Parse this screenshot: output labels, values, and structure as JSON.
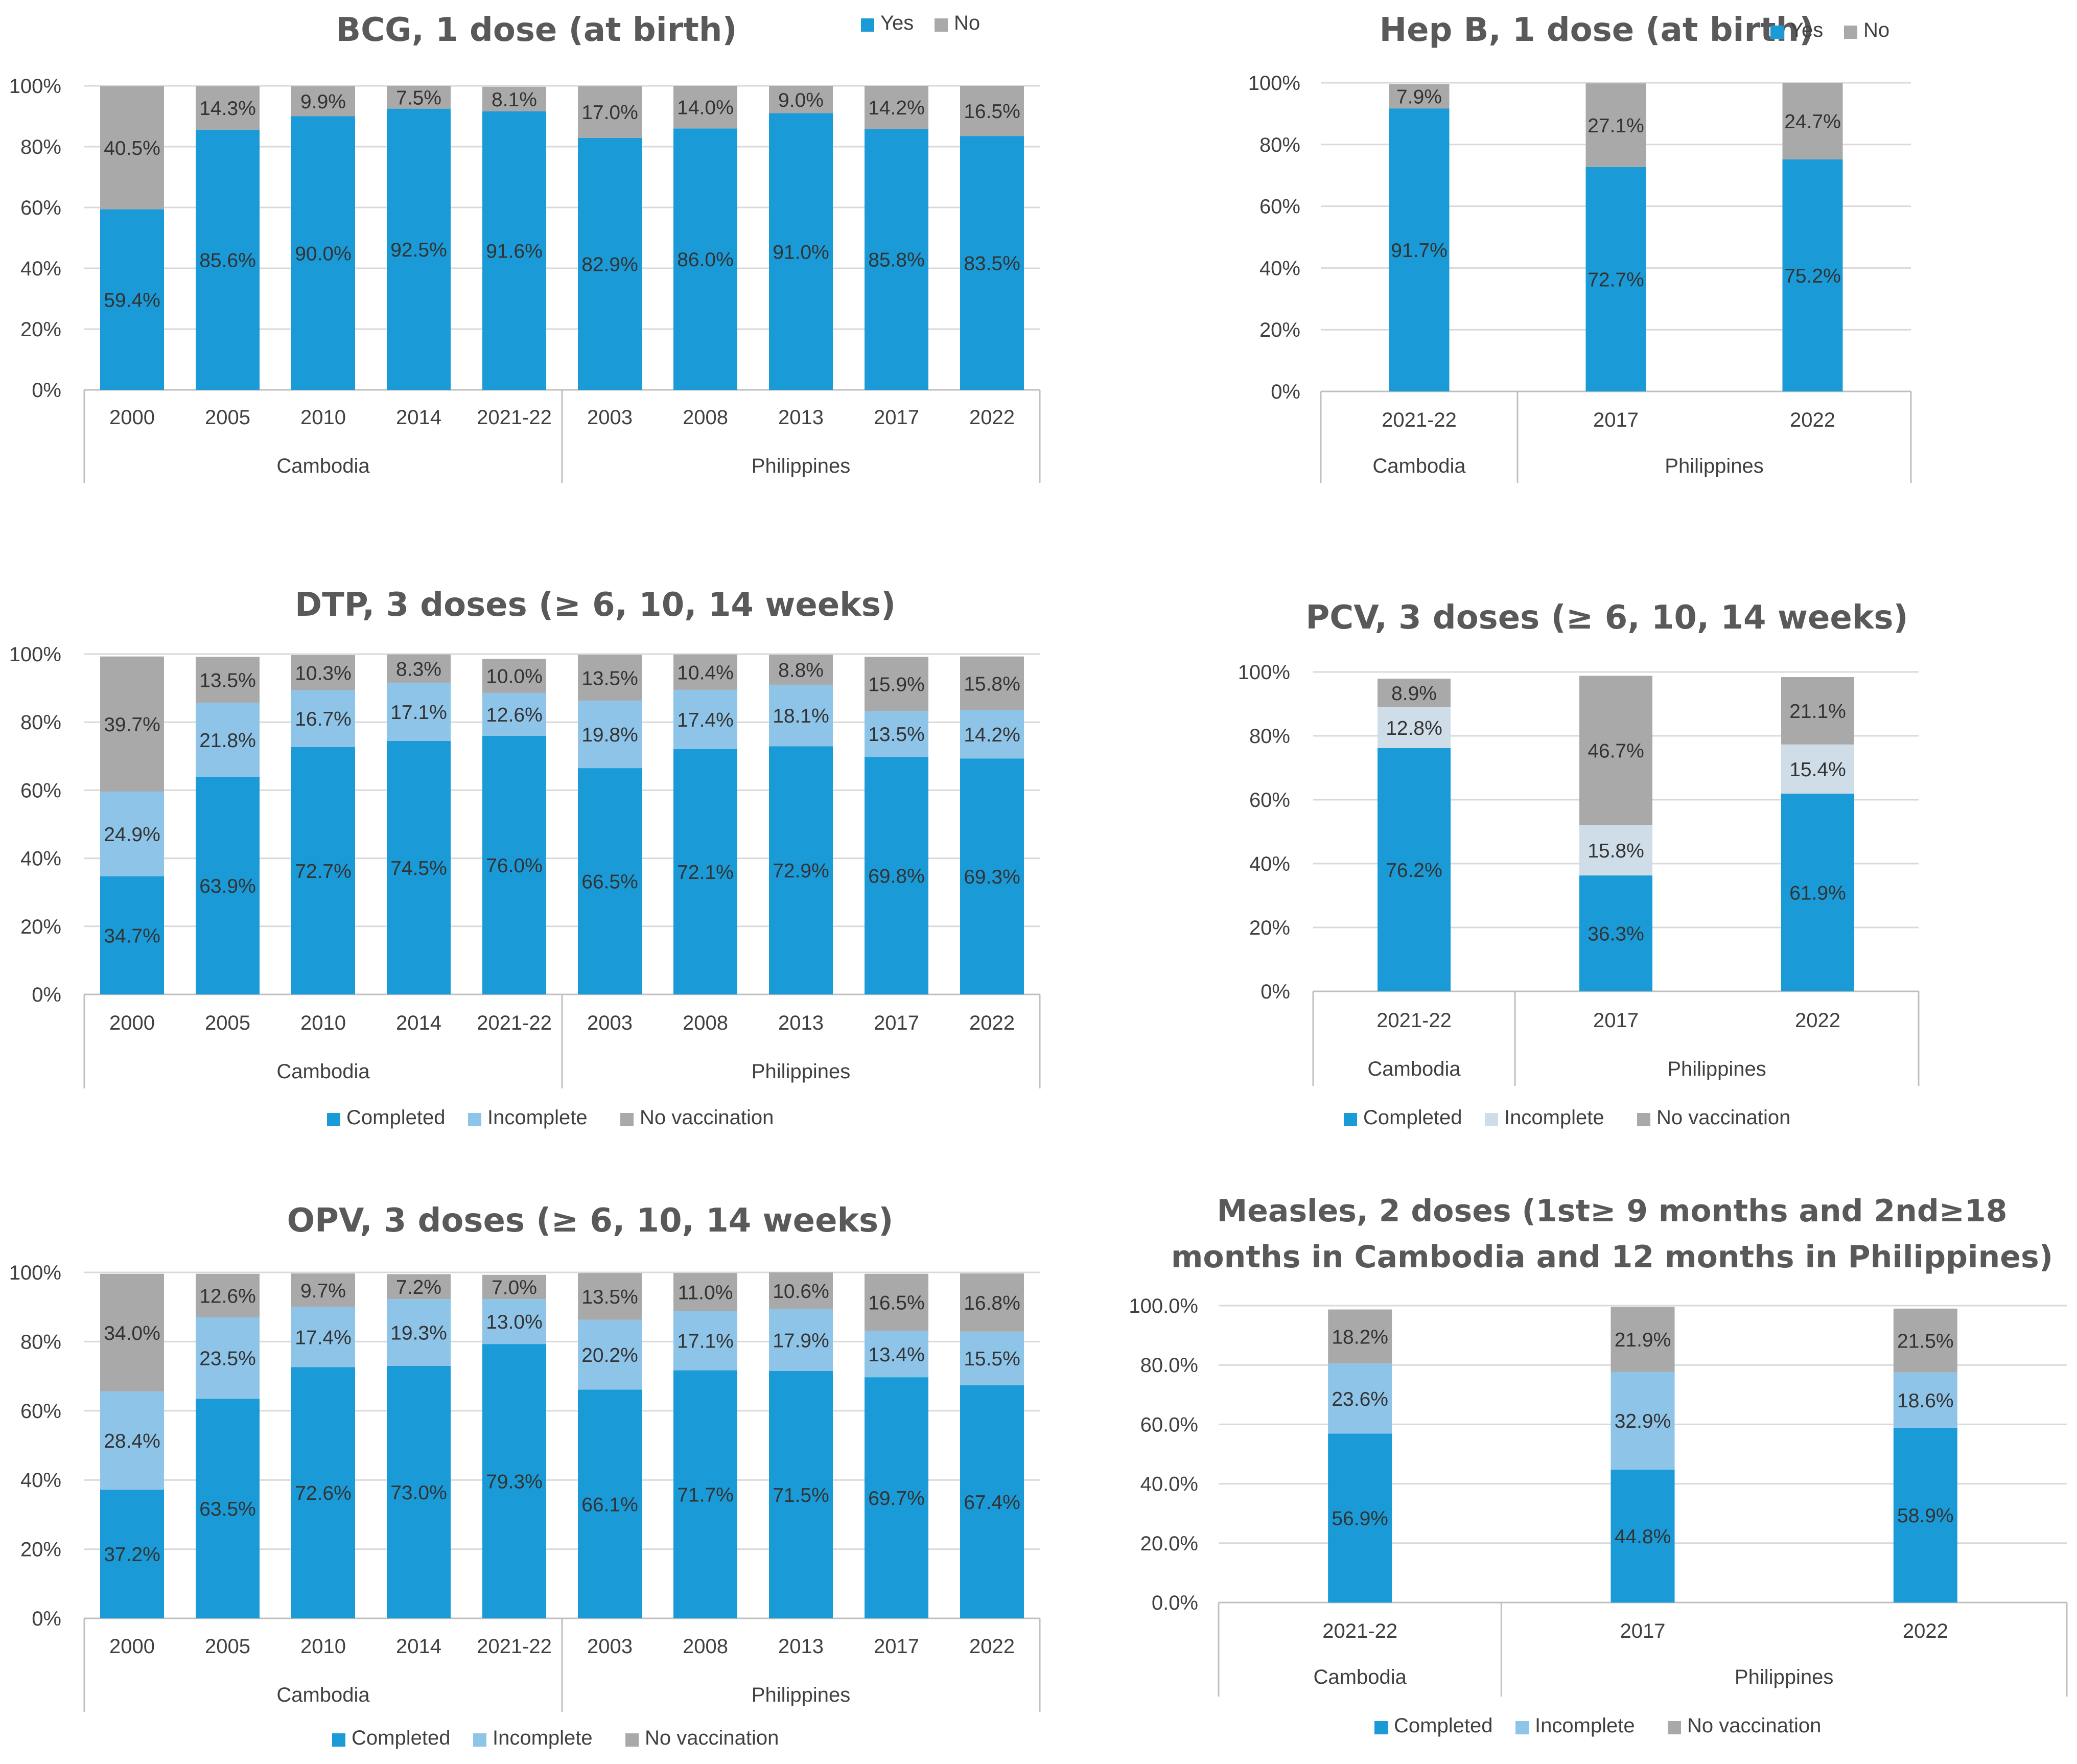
{
  "colors": {
    "yes": "#1a9ad6",
    "no": "#a9a9a9",
    "completed": "#1a9ad6",
    "incomplete": "#8ec4e8",
    "incomplete_light": "#cfdde8",
    "no_vaccination": "#a9a9a9"
  },
  "chart_data": [
    {
      "id": "bcg",
      "type": "bar",
      "stacked": true,
      "title": "BCG, 1 dose (at birth)",
      "categories": [
        "2000",
        "2005",
        "2010",
        "2014",
        "2021-22",
        "2003",
        "2008",
        "2013",
        "2017",
        "2022"
      ],
      "groups": [
        {
          "name": "Cambodia",
          "count": 5
        },
        {
          "name": "Philippines",
          "count": 5
        }
      ],
      "yticks": [
        "0%",
        "20%",
        "40%",
        "60%",
        "80%",
        "100%"
      ],
      "ylim": [
        0,
        100
      ],
      "legend_position": "top-right",
      "series": [
        {
          "name": "Yes",
          "color_key": "yes",
          "values": [
            59.4,
            85.6,
            90.0,
            92.5,
            91.6,
            82.9,
            86.0,
            91.0,
            85.8,
            83.5
          ],
          "labels": [
            "59.4%",
            "85.6%",
            "90.0%",
            "92.5%",
            "91.6%",
            "82.9%",
            "86.0%",
            "91.0%",
            "85.8%",
            "83.5%"
          ]
        },
        {
          "name": "No",
          "color_key": "no",
          "values": [
            40.5,
            14.3,
            9.9,
            7.5,
            8.1,
            17.0,
            14.0,
            9.0,
            14.2,
            16.5
          ],
          "labels": [
            "40.5%",
            "14.3%",
            "9.9%",
            "7.5%",
            "8.1%",
            "17.0%",
            "14.0%",
            "9.0%",
            "14.2%",
            "16.5%"
          ]
        }
      ]
    },
    {
      "id": "hepb",
      "type": "bar",
      "stacked": true,
      "title": "Hep B, 1 dose (at birth)",
      "categories": [
        "2021-22",
        "2017",
        "2022"
      ],
      "groups": [
        {
          "name": "Cambodia",
          "count": 1
        },
        {
          "name": "Philippines",
          "count": 2
        }
      ],
      "yticks": [
        "0%",
        "20%",
        "40%",
        "60%",
        "80%",
        "100%"
      ],
      "ylim": [
        0,
        100
      ],
      "legend_position": "top-right",
      "series": [
        {
          "name": "Yes",
          "color_key": "yes",
          "values": [
            91.7,
            72.7,
            75.2
          ],
          "labels": [
            "91.7%",
            "72.7%",
            "75.2%"
          ]
        },
        {
          "name": "No",
          "color_key": "no",
          "values": [
            7.9,
            27.1,
            24.7
          ],
          "labels": [
            "7.9%",
            "27.1%",
            "24.7%"
          ]
        }
      ]
    },
    {
      "id": "dtp",
      "type": "bar",
      "stacked": true,
      "title": "DTP, 3 doses (≥ 6, 10, 14 weeks)",
      "categories": [
        "2000",
        "2005",
        "2010",
        "2014",
        "2021-22",
        "2003",
        "2008",
        "2013",
        "2017",
        "2022"
      ],
      "groups": [
        {
          "name": "Cambodia",
          "count": 5
        },
        {
          "name": "Philippines",
          "count": 5
        }
      ],
      "yticks": [
        "0%",
        "20%",
        "40%",
        "60%",
        "80%",
        "100%"
      ],
      "ylim": [
        0,
        100
      ],
      "legend_position": "bottom",
      "series": [
        {
          "name": "Completed",
          "color_key": "completed",
          "values": [
            34.7,
            63.9,
            72.7,
            74.5,
            76.0,
            66.5,
            72.1,
            72.9,
            69.8,
            69.3
          ],
          "labels": [
            "34.7%",
            "63.9%",
            "72.7%",
            "74.5%",
            "76.0%",
            "66.5%",
            "72.1%",
            "72.9%",
            "69.8%",
            "69.3%"
          ]
        },
        {
          "name": "Incomplete",
          "color_key": "incomplete",
          "values": [
            24.9,
            21.8,
            16.7,
            17.1,
            12.6,
            19.8,
            17.4,
            18.1,
            13.5,
            14.2
          ],
          "labels": [
            "24.9%",
            "21.8%",
            "16.7%",
            "17.1%",
            "12.6%",
            "19.8%",
            "17.4%",
            "18.1%",
            "13.5%",
            "14.2%"
          ]
        },
        {
          "name": "No vaccination",
          "color_key": "no_vaccination",
          "values": [
            39.7,
            13.5,
            10.3,
            8.3,
            10.0,
            13.5,
            10.4,
            8.8,
            15.9,
            15.8
          ],
          "labels": [
            "39.7%",
            "13.5%",
            "10.3%",
            "8.3%",
            "10.0%",
            "13.5%",
            "10.4%",
            "8.8%",
            "15.9%",
            "15.8%"
          ]
        }
      ]
    },
    {
      "id": "pcv",
      "type": "bar",
      "stacked": true,
      "title": "PCV, 3 doses (≥ 6, 10, 14 weeks)",
      "categories": [
        "2021-22",
        "2017",
        "2022"
      ],
      "groups": [
        {
          "name": "Cambodia",
          "count": 1
        },
        {
          "name": "Philippines",
          "count": 2
        }
      ],
      "yticks": [
        "0%",
        "20%",
        "40%",
        "60%",
        "80%",
        "100%"
      ],
      "ylim": [
        0,
        100
      ],
      "legend_position": "bottom",
      "series": [
        {
          "name": "Completed",
          "color_key": "completed",
          "values": [
            76.2,
            36.3,
            61.9
          ],
          "labels": [
            "76.2%",
            "36.3%",
            "61.9%"
          ]
        },
        {
          "name": "Incomplete",
          "color_key": "incomplete_light",
          "values": [
            12.8,
            15.8,
            15.4
          ],
          "labels": [
            "12.8%",
            "15.8%",
            "15.4%"
          ]
        },
        {
          "name": "No vaccination",
          "color_key": "no_vaccination",
          "values": [
            8.9,
            46.7,
            21.1
          ],
          "labels": [
            "8.9%",
            "46.7%",
            "21.1%"
          ]
        }
      ]
    },
    {
      "id": "opv",
      "type": "bar",
      "stacked": true,
      "title": "OPV, 3 doses (≥ 6, 10, 14 weeks)",
      "categories": [
        "2000",
        "2005",
        "2010",
        "2014",
        "2021-22",
        "2003",
        "2008",
        "2013",
        "2017",
        "2022"
      ],
      "groups": [
        {
          "name": "Cambodia",
          "count": 5
        },
        {
          "name": "Philippines",
          "count": 5
        }
      ],
      "yticks": [
        "0%",
        "20%",
        "40%",
        "60%",
        "80%",
        "100%"
      ],
      "ylim": [
        0,
        100
      ],
      "legend_position": "bottom",
      "series": [
        {
          "name": "Completed",
          "color_key": "completed",
          "values": [
            37.2,
            63.5,
            72.6,
            73.0,
            79.3,
            66.1,
            71.7,
            71.5,
            69.7,
            67.4
          ],
          "labels": [
            "37.2%",
            "63.5%",
            "72.6%",
            "73.0%",
            "79.3%",
            "66.1%",
            "71.7%",
            "71.5%",
            "69.7%",
            "67.4%"
          ]
        },
        {
          "name": "Incomplete",
          "color_key": "incomplete",
          "values": [
            28.4,
            23.5,
            17.4,
            19.3,
            13.0,
            20.2,
            17.1,
            17.9,
            13.4,
            15.5
          ],
          "labels": [
            "28.4%",
            "23.5%",
            "17.4%",
            "19.3%",
            "13.0%",
            "20.2%",
            "17.1%",
            "17.9%",
            "13.4%",
            "15.5%"
          ]
        },
        {
          "name": "No vaccination",
          "color_key": "no_vaccination",
          "values": [
            34.0,
            12.6,
            9.7,
            7.2,
            7.0,
            13.5,
            11.0,
            10.6,
            16.5,
            16.8
          ],
          "labels": [
            "34.0%",
            "12.6%",
            "9.7%",
            "7.2%",
            "7.0%",
            "13.5%",
            "11.0%",
            "10.6%",
            "16.5%",
            "16.8%"
          ]
        }
      ]
    },
    {
      "id": "measles",
      "type": "bar",
      "stacked": true,
      "title": "Measles, 2 doses (1st≥ 9 months and 2nd≥18 months in Cambodia and 12 months in Philippines)",
      "title_lines": [
        "Measles, 2 doses (1st≥ 9 months and 2nd≥18",
        "months in Cambodia and 12 months in Philippines)"
      ],
      "categories": [
        "2021-22",
        "2017",
        "2022"
      ],
      "groups": [
        {
          "name": "Cambodia",
          "count": 1
        },
        {
          "name": "Philippines",
          "count": 2
        }
      ],
      "yticks": [
        "0.0%",
        "20.0%",
        "40.0%",
        "60.0%",
        "80.0%",
        "100.0%"
      ],
      "ylim": [
        0,
        100
      ],
      "legend_position": "bottom",
      "series": [
        {
          "name": "Completed",
          "color_key": "completed",
          "values": [
            56.9,
            44.8,
            58.9
          ],
          "labels": [
            "56.9%",
            "44.8%",
            "58.9%"
          ]
        },
        {
          "name": "Incomplete",
          "color_key": "incomplete",
          "values": [
            23.6,
            32.9,
            18.6
          ],
          "labels": [
            "23.6%",
            "32.9%",
            "18.6%"
          ]
        },
        {
          "name": "No vaccination",
          "color_key": "no_vaccination",
          "values": [
            18.2,
            21.9,
            21.5
          ],
          "labels": [
            "18.2%",
            "21.9%",
            "21.5%"
          ]
        }
      ]
    }
  ]
}
